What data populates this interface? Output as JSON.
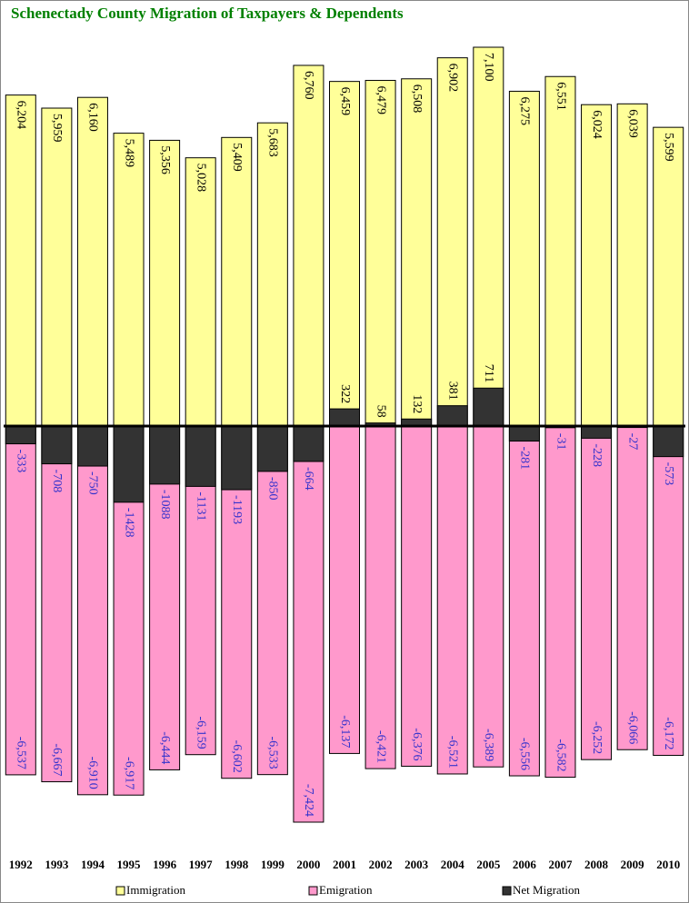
{
  "chart_data": {
    "type": "bar",
    "title": "Schenectady County Migration of Taxpayers & Dependents",
    "categories": [
      "1992",
      "1993",
      "1994",
      "1995",
      "1996",
      "1997",
      "1998",
      "1999",
      "2000",
      "2001",
      "2002",
      "2003",
      "2004",
      "2005",
      "2006",
      "2007",
      "2008",
      "2009",
      "2010"
    ],
    "series": [
      {
        "name": "Immigration",
        "color": "#ffff99",
        "values": [
          6204,
          5959,
          6160,
          5489,
          5356,
          5028,
          5409,
          5683,
          6760,
          6459,
          6479,
          6508,
          6902,
          7100,
          6275,
          6551,
          6024,
          6039,
          5599
        ],
        "value_labels": [
          "6,204",
          "5,959",
          "6,160",
          "5,489",
          "5,356",
          "5,028",
          "5,409",
          "5,683",
          "6,760",
          "6,459",
          "6,479",
          "6,508",
          "6,902",
          "7,100",
          "6,275",
          "6,551",
          "6,024",
          "6,039",
          "5,599"
        ]
      },
      {
        "name": "Emigration",
        "color": "#ff99cc",
        "values": [
          -6537,
          -6667,
          -6910,
          -6917,
          -6444,
          -6159,
          -6602,
          -6533,
          -7424,
          -6137,
          -6421,
          -6376,
          -6521,
          -6389,
          -6556,
          -6582,
          -6252,
          -6066,
          -6172
        ],
        "value_labels": [
          "-6,537",
          "-6,667",
          "-6,910",
          "-6,917",
          "-6,444",
          "-6,159",
          "-6,602",
          "-6,533",
          "-7,424",
          "-6,137",
          "-6,421",
          "-6,376",
          "-6,521",
          "-6,389",
          "-6,556",
          "-6,582",
          "-6,252",
          "-6,066",
          "-6,172"
        ]
      },
      {
        "name": "Net Migration",
        "color": "#333333",
        "values": [
          -333,
          -708,
          -750,
          -1428,
          -1088,
          -1131,
          -1193,
          -850,
          -664,
          322,
          58,
          132,
          381,
          711,
          -281,
          -31,
          -228,
          -27,
          -573
        ]
      }
    ]
  }
}
